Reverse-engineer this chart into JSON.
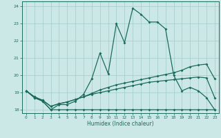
{
  "xlabel": "Humidex (Indice chaleur)",
  "xlim": [
    -0.5,
    23.5
  ],
  "ylim": [
    17.8,
    24.3
  ],
  "yticks": [
    18,
    19,
    20,
    21,
    22,
    23,
    24
  ],
  "xticks": [
    0,
    1,
    2,
    3,
    4,
    5,
    6,
    7,
    8,
    9,
    10,
    11,
    12,
    13,
    14,
    15,
    16,
    17,
    18,
    19,
    20,
    21,
    22,
    23
  ],
  "background_color": "#cce8e6",
  "grid_color": "#a0ccca",
  "line_color": "#1a6b5a",
  "line1_x": [
    0,
    1,
    2,
    3,
    4,
    5,
    6,
    7,
    8,
    9,
    10,
    11,
    12,
    13,
    14,
    15,
    16,
    17,
    18,
    19,
    20,
    21,
    22,
    23
  ],
  "line1_y": [
    19.1,
    18.7,
    18.5,
    18.0,
    18.3,
    18.3,
    18.5,
    18.9,
    19.8,
    21.3,
    20.1,
    23.0,
    21.9,
    23.9,
    23.55,
    23.1,
    23.1,
    22.7,
    20.0,
    19.1,
    19.3,
    19.1,
    18.7,
    18.0
  ],
  "line2_x": [
    0,
    1,
    2,
    3,
    4,
    5,
    6,
    7,
    8,
    9,
    10,
    11,
    12,
    13,
    14,
    15,
    16,
    17,
    18,
    19,
    20,
    21,
    22,
    23
  ],
  "line2_y": [
    19.1,
    18.75,
    18.55,
    18.2,
    18.35,
    18.45,
    18.6,
    18.75,
    18.95,
    19.15,
    19.3,
    19.45,
    19.55,
    19.65,
    19.75,
    19.85,
    19.95,
    20.05,
    20.15,
    20.3,
    20.5,
    20.6,
    20.65,
    19.8
  ],
  "line3_x": [
    0,
    1,
    2,
    3,
    4,
    5,
    6,
    7,
    8,
    9,
    10,
    11,
    12,
    13,
    14,
    15,
    16,
    17,
    18,
    19,
    20,
    21,
    22,
    23
  ],
  "line3_y": [
    19.1,
    18.75,
    18.55,
    18.2,
    18.35,
    18.45,
    18.6,
    18.75,
    18.9,
    19.0,
    19.1,
    19.2,
    19.3,
    19.4,
    19.5,
    19.6,
    19.65,
    19.7,
    19.75,
    19.8,
    19.85,
    19.9,
    19.85,
    18.7
  ],
  "line4_x": [
    0,
    1,
    2,
    3,
    4,
    5,
    6,
    7,
    8,
    9,
    10,
    11,
    12,
    13,
    14,
    15,
    16,
    17,
    18,
    19,
    20,
    21,
    22,
    23
  ],
  "line4_y": [
    19.1,
    18.7,
    18.5,
    18.0,
    18.0,
    18.0,
    18.0,
    18.0,
    18.0,
    18.0,
    18.0,
    18.0,
    18.0,
    18.0,
    18.0,
    18.0,
    18.0,
    18.0,
    18.0,
    18.0,
    18.0,
    18.0,
    18.0,
    18.0
  ]
}
